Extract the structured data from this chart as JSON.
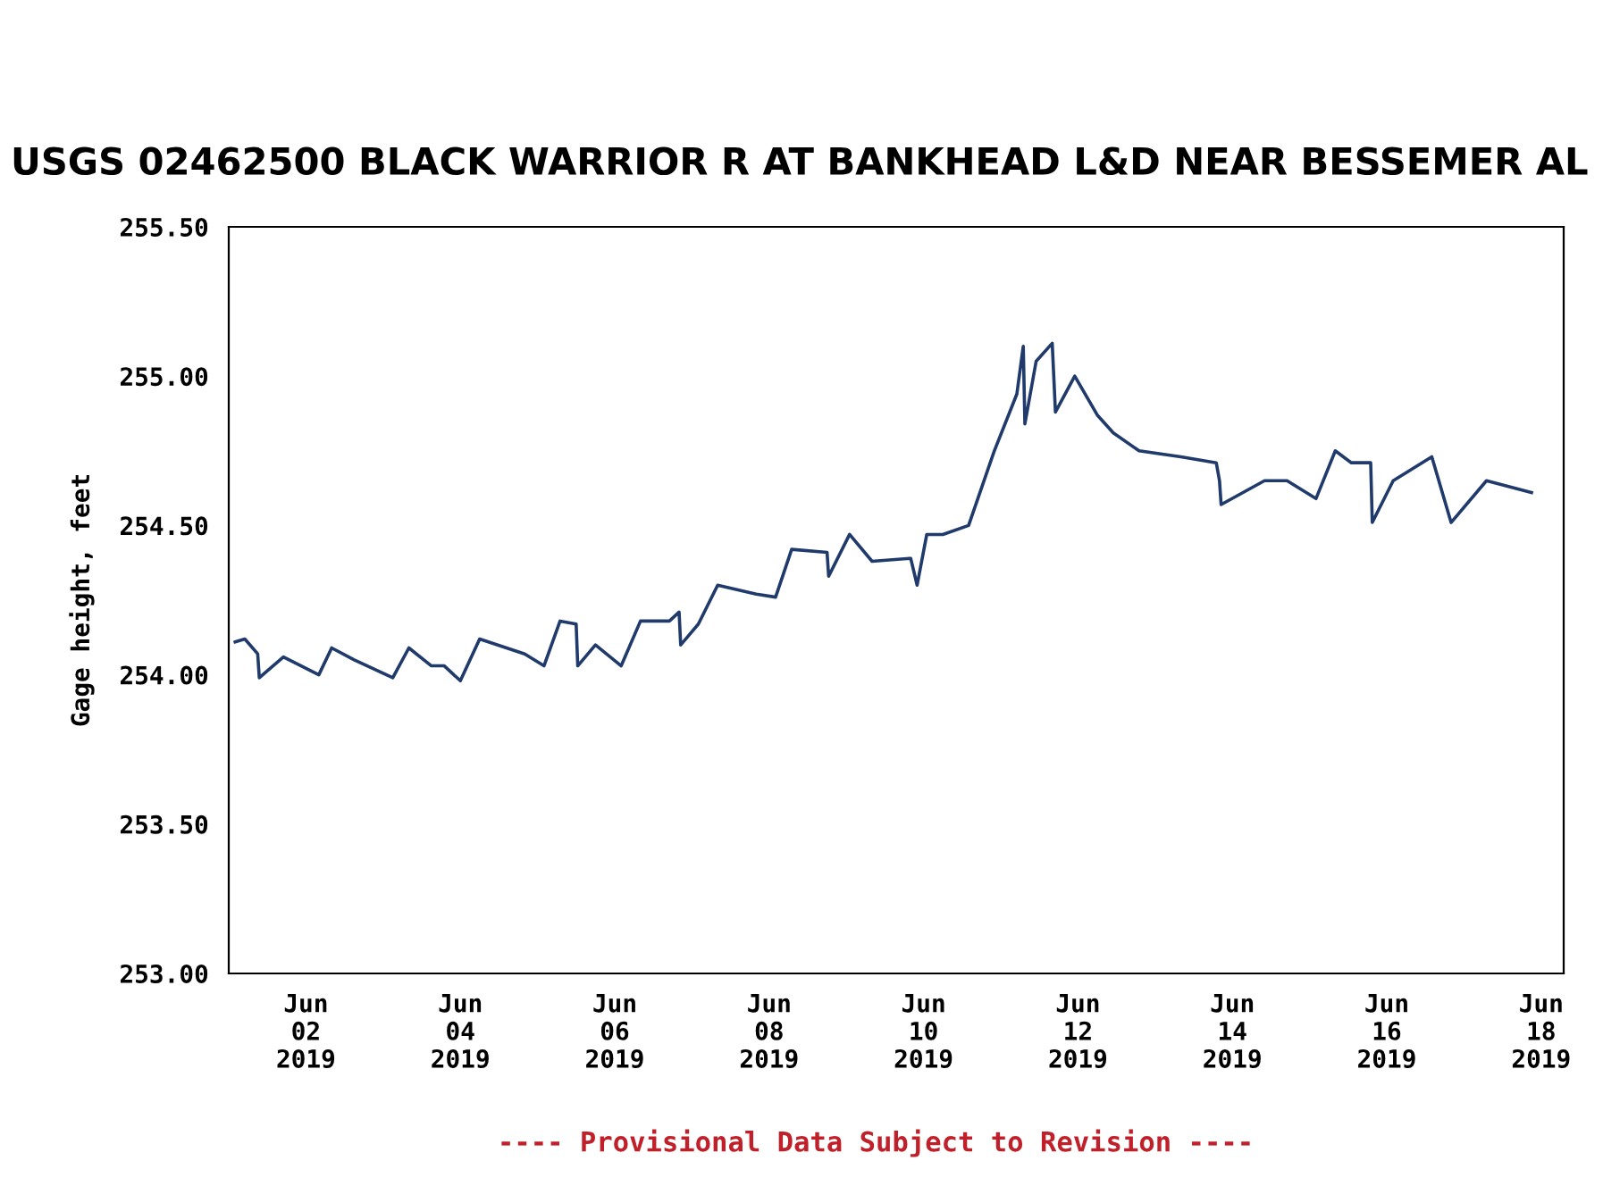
{
  "chart_data": {
    "type": "line",
    "title": "USGS 02462500 BLACK WARRIOR R AT BANKHEAD L&D NEAR BESSEMER AL",
    "ylabel": "Gage height, feet",
    "annotations": [
      "---- Provisional Data Subject to Revision ----"
    ],
    "x": [
      "2019-06-01T02:00",
      "2019-06-01T05:00",
      "2019-06-01T09:00",
      "2019-06-01T09:30",
      "2019-06-01T17:00",
      "2019-06-02T04:00",
      "2019-06-02T08:00",
      "2019-06-02T15:00",
      "2019-06-03T03:00",
      "2019-06-03T08:00",
      "2019-06-03T15:00",
      "2019-06-03T19:00",
      "2019-06-04T00:00",
      "2019-06-04T06:00",
      "2019-06-04T20:00",
      "2019-06-05T02:00",
      "2019-06-05T07:00",
      "2019-06-05T12:00",
      "2019-06-05T12:30",
      "2019-06-05T18:00",
      "2019-06-06T02:00",
      "2019-06-06T08:00",
      "2019-06-06T17:00",
      "2019-06-06T20:00",
      "2019-06-06T20:30",
      "2019-06-07T02:00",
      "2019-06-07T08:00",
      "2019-06-07T20:00",
      "2019-06-08T02:00",
      "2019-06-08T07:00",
      "2019-06-08T18:00",
      "2019-06-08T18:30",
      "2019-06-09T01:00",
      "2019-06-09T08:00",
      "2019-06-09T20:00",
      "2019-06-09T22:00",
      "2019-06-10T01:00",
      "2019-06-10T06:00",
      "2019-06-10T14:00",
      "2019-06-10T22:00",
      "2019-06-11T05:00",
      "2019-06-11T07:00",
      "2019-06-11T07:30",
      "2019-06-11T11:00",
      "2019-06-11T16:00",
      "2019-06-11T17:00",
      "2019-06-11T23:00",
      "2019-06-12T06:00",
      "2019-06-12T11:00",
      "2019-06-12T19:00",
      "2019-06-13T08:00",
      "2019-06-13T19:00",
      "2019-06-13T20:00",
      "2019-06-13T20:30",
      "2019-06-14T10:00",
      "2019-06-14T17:00",
      "2019-06-15T02:00",
      "2019-06-15T08:00",
      "2019-06-15T13:00",
      "2019-06-15T19:00",
      "2019-06-15T19:30",
      "2019-06-16T02:00",
      "2019-06-16T14:00",
      "2019-06-16T20:00",
      "2019-06-17T07:00",
      "2019-06-17T21:00"
    ],
    "series": [
      {
        "color": "#1f3a6b",
        "values": [
          254.11,
          254.12,
          254.07,
          253.99,
          254.06,
          254.0,
          254.09,
          254.05,
          253.99,
          254.09,
          254.03,
          254.03,
          253.98,
          254.12,
          254.07,
          254.03,
          254.18,
          254.17,
          254.03,
          254.1,
          254.03,
          254.18,
          254.18,
          254.21,
          254.1,
          254.17,
          254.3,
          254.27,
          254.26,
          254.42,
          254.41,
          254.33,
          254.47,
          254.38,
          254.39,
          254.3,
          254.47,
          254.47,
          254.5,
          254.75,
          254.94,
          255.1,
          254.84,
          255.05,
          255.11,
          254.88,
          255.0,
          254.87,
          254.81,
          254.75,
          254.73,
          254.71,
          254.65,
          254.57,
          254.65,
          254.65,
          254.59,
          254.75,
          254.71,
          254.71,
          254.51,
          254.65,
          254.73,
          254.51,
          254.65,
          254.61
        ]
      }
    ],
    "xlim": [
      "2019-06-01T00:00",
      "2019-06-18T07:00"
    ],
    "xticks": [
      {
        "value": "2019-06-02",
        "label": "Jun\n02\n2019"
      },
      {
        "value": "2019-06-04",
        "label": "Jun\n04\n2019"
      },
      {
        "value": "2019-06-06",
        "label": "Jun\n06\n2019"
      },
      {
        "value": "2019-06-08",
        "label": "Jun\n08\n2019"
      },
      {
        "value": "2019-06-10",
        "label": "Jun\n10\n2019"
      },
      {
        "value": "2019-06-12",
        "label": "Jun\n12\n2019"
      },
      {
        "value": "2019-06-14",
        "label": "Jun\n14\n2019"
      },
      {
        "value": "2019-06-16",
        "label": "Jun\n16\n2019"
      },
      {
        "value": "2019-06-18",
        "label": "Jun\n18\n2019"
      }
    ],
    "ylim": [
      253.0,
      255.5
    ],
    "yticks": [
      {
        "value": 253.0,
        "label": "253.00"
      },
      {
        "value": 253.5,
        "label": "253.50"
      },
      {
        "value": 254.0,
        "label": "254.00"
      },
      {
        "value": 254.5,
        "label": "254.50"
      },
      {
        "value": 255.0,
        "label": "255.00"
      },
      {
        "value": 255.5,
        "label": "255.50"
      }
    ],
    "grid": false,
    "legend": false,
    "marker": "none",
    "line_style": "solid"
  }
}
